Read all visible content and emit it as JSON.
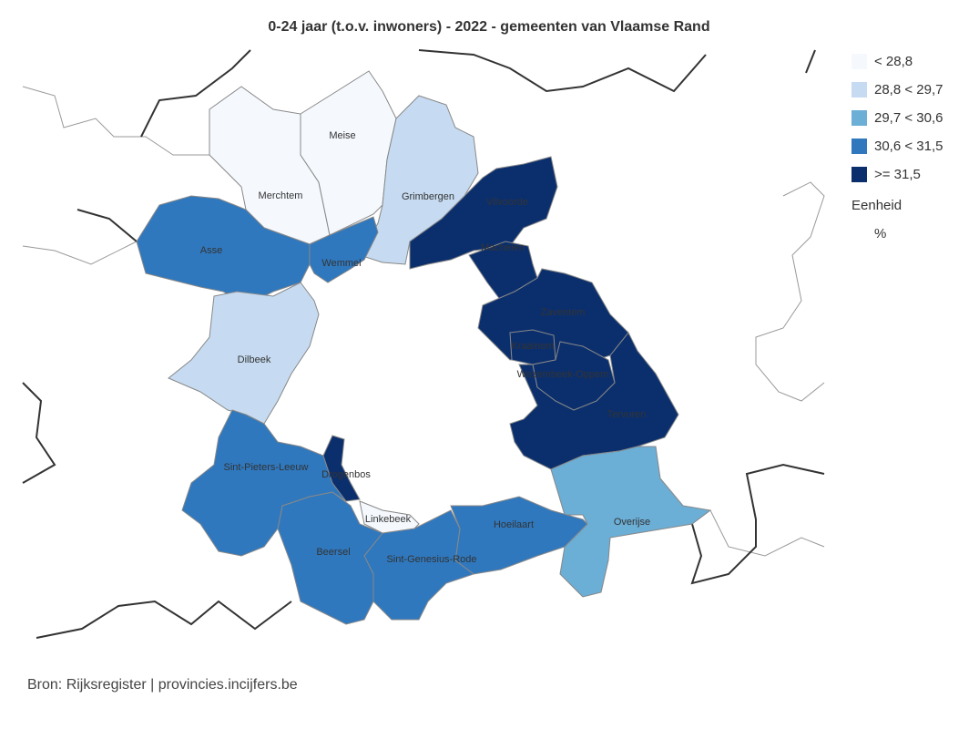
{
  "title": "0-24 jaar (t.o.v. inwoners) - 2022 - gemeenten van Vlaamse Rand",
  "legend": {
    "classes": [
      {
        "label": "< 28,8",
        "color": "#f5f9fe"
      },
      {
        "label": "28,8 < 29,7",
        "color": "#c6dbf1"
      },
      {
        "label": "29,7 < 30,6",
        "color": "#6baed6"
      },
      {
        "label": "30,6 < 31,5",
        "color": "#2f78be"
      },
      {
        "label": ">= 31,5",
        "color": "#0b2f6d"
      }
    ],
    "unit_title": "Eenheid",
    "unit": "%"
  },
  "municipalities": [
    {
      "name": "Merchtem",
      "color": "#f5f9fe"
    },
    {
      "name": "Meise",
      "color": "#f5f9fe"
    },
    {
      "name": "Grimbergen",
      "color": "#c6dbf1"
    },
    {
      "name": "Asse",
      "color": "#2f78be"
    },
    {
      "name": "Wemmel",
      "color": "#2f78be"
    },
    {
      "name": "Dilbeek",
      "color": "#c6dbf1"
    },
    {
      "name": "Vilvoorde",
      "color": "#0b2f6d"
    },
    {
      "name": "Machelen",
      "color": "#0b2f6d"
    },
    {
      "name": "Tervuren",
      "color": "#0b2f6d"
    },
    {
      "name": "Zaventem",
      "color": "#0b2f6d"
    },
    {
      "name": "Kraainem",
      "color": "#0b2f6d"
    },
    {
      "name": "Wezembeek-Oppem",
      "color": "#0b2f6d"
    },
    {
      "name": "Overijse",
      "color": "#6baed6"
    },
    {
      "name": "Hoeilaart",
      "color": "#2f78be"
    },
    {
      "name": "Sint-Genesius-Rode",
      "color": "#2f78be"
    },
    {
      "name": "Beersel",
      "color": "#2f78be"
    },
    {
      "name": "Linkebeek",
      "color": "#f5f9fe"
    },
    {
      "name": "Sint-Pieters-Leeuw",
      "color": "#2f78be"
    },
    {
      "name": "Drogenbos",
      "color": "#0b2f6d"
    }
  ],
  "source": "Bron: Rijksregister | provincies.incijfers.be"
}
